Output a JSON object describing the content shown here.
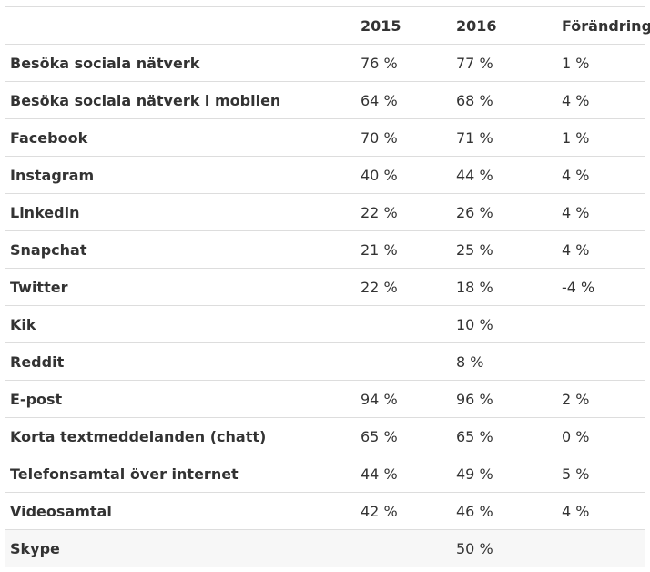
{
  "table": {
    "headers": [
      "",
      "2015",
      "2016",
      "Förändring"
    ],
    "rows": [
      {
        "label": "Besöka sociala nätverk",
        "y2015": "76 %",
        "y2016": "77 %",
        "change": "1 %"
      },
      {
        "label": "Besöka sociala nätverk i mobilen",
        "y2015": "64 %",
        "y2016": "68 %",
        "change": "4 %"
      },
      {
        "label": "Facebook",
        "y2015": "70 %",
        "y2016": "71 %",
        "change": "1 %"
      },
      {
        "label": "Instagram",
        "y2015": "40 %",
        "y2016": "44 %",
        "change": "4 %"
      },
      {
        "label": "Linkedin",
        "y2015": "22 %",
        "y2016": "26 %",
        "change": "4 %"
      },
      {
        "label": "Snapchat",
        "y2015": "21 %",
        "y2016": "25 %",
        "change": "4 %"
      },
      {
        "label": "Twitter",
        "y2015": "22 %",
        "y2016": "18 %",
        "change": "-4 %"
      },
      {
        "label": "Kik",
        "y2015": "",
        "y2016": "10 %",
        "change": ""
      },
      {
        "label": "Reddit",
        "y2015": "",
        "y2016": "8 %",
        "change": ""
      },
      {
        "label": "E-post",
        "y2015": "94 %",
        "y2016": "96 %",
        "change": "2 %"
      },
      {
        "label": "Korta textmeddelanden (chatt)",
        "y2015": "65 %",
        "y2016": "65 %",
        "change": "0 %"
      },
      {
        "label": "Telefonsamtal över internet",
        "y2015": "44 %",
        "y2016": "49 %",
        "change": "5 %"
      },
      {
        "label": "Videosamtal",
        "y2015": "42 %",
        "y2016": "46 %",
        "change": "4 %"
      },
      {
        "label": "Skype",
        "y2015": "",
        "y2016": "50 %",
        "change": ""
      }
    ]
  }
}
